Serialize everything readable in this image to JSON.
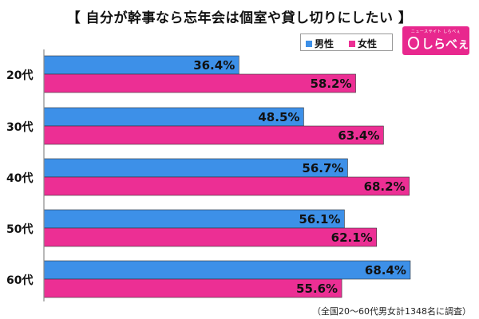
{
  "title": "【 自分が幹事なら忘年会は個室や貸し切りにしたい 】",
  "legend": {
    "male": "男性",
    "female": "女性"
  },
  "logo": {
    "tagline": "ニュースサイト しらべぇ",
    "brand": "しらべぇ"
  },
  "note": "（全国20～60代男女計1348名に調査）",
  "colors": {
    "male": "#3d90e8",
    "female": "#ec2f94",
    "axis": "#8a8a8a"
  },
  "chart_data": {
    "type": "bar",
    "orientation": "horizontal",
    "categories": [
      "20代",
      "30代",
      "40代",
      "50代",
      "60代"
    ],
    "series": [
      {
        "name": "男性",
        "values": [
          36.4,
          48.5,
          56.7,
          56.1,
          68.4
        ]
      },
      {
        "name": "女性",
        "values": [
          58.2,
          63.4,
          68.2,
          62.1,
          55.6
        ]
      }
    ],
    "value_suffix": "%",
    "xlim": [
      0,
      100
    ]
  }
}
